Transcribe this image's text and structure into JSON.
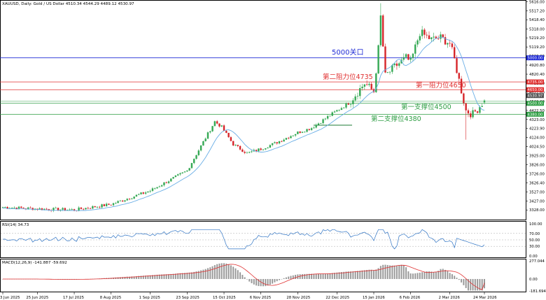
{
  "header": {
    "symbol_text": "XAUUSD, Daily:  Gold / US Dollar  4510.34 4544.29 4489.12 4530.97"
  },
  "colors": {
    "bull": "#33a853",
    "bear": "#d6252a",
    "ma": "#6aaee6",
    "line_5000": "#1f2bd6",
    "resistance": "#e03131",
    "support": "#2f9e44",
    "rsi": "#2e73c4",
    "macd_signal": "#e03131",
    "macd_hist": "#9a9a9a"
  },
  "annotations": {
    "level_5000": "5000关口",
    "resistance_1": "第一阻力位4650",
    "resistance_2": "第二阻力位4735",
    "support_1": "第一支撑位4500",
    "support_2": "第二支撑位4380"
  },
  "price_axis": {
    "ticks": [
      "5616.00",
      "5517.20",
      "5418.40",
      "5318.00",
      "5219.20",
      "5119.20",
      "5020.00",
      "4920.80",
      "4820.40",
      "4721.20",
      "4621.60",
      "4522.00",
      "4422.50",
      "4323.00",
      "4223.90",
      "4124.00",
      "4024.50",
      "3925.00",
      "3826.00",
      "3726.00",
      "3626.40",
      "3527.00",
      "3427.00",
      "3328.00"
    ],
    "tags": {
      "level_5000": "5000.00",
      "resistance_2": "4735.00",
      "resistance_1": "4650.00",
      "current": "4530.97",
      "support_1": "4500.00",
      "support_2": "4380.00"
    }
  },
  "rsi_panel": {
    "label": "RSI(14) 34.73",
    "ticks": [
      "100.00",
      "70.00",
      "50.00",
      "30.00",
      "0.00"
    ]
  },
  "macd_panel": {
    "label": "MACD(12,26,9) -141.887 -59.692",
    "ticks": [
      "277.044",
      "0.00",
      "-181.694"
    ]
  },
  "time_axis": {
    "labels": [
      "3 Jun 2025",
      "25 Jun 2025",
      "17 Jul 2025",
      "8 Aug 2025",
      "1 Sep 2025",
      "23 Sep 2025",
      "15 Oct 2025",
      "6 Nov 2025",
      "28 Nov 2025",
      "22 Dec 2025",
      "15 Jan 2026",
      "6 Feb 2026",
      "2 Mar 2026",
      "24 Mar 2026"
    ]
  },
  "chart_data": {
    "type": "candlestick",
    "instrument": "XAUUSD",
    "timeframe": "Daily",
    "last_bar": {
      "open": 4510.34,
      "high": 4544.29,
      "low": 4489.12,
      "close": 4530.97
    },
    "ylim": [
      3230,
      5620
    ],
    "price_path": [
      {
        "date": "3 Jun 2025",
        "close": 3360
      },
      {
        "date": "25 Jun 2025",
        "close": 3340
      },
      {
        "date": "17 Jul 2025",
        "close": 3330
      },
      {
        "date": "8 Aug 2025",
        "close": 3390
      },
      {
        "date": "1 Sep 2025",
        "close": 3540
      },
      {
        "date": "23 Sep 2025",
        "close": 3760
      },
      {
        "date": "15 Oct 2025",
        "close": 4200
      },
      {
        "date": "6 Nov 2025",
        "close": 4000
      },
      {
        "date": "28 Nov 2025",
        "close": 4180
      },
      {
        "date": "22 Dec 2025",
        "close": 4420
      },
      {
        "date": "15 Jan 2026",
        "close": 4630
      },
      {
        "date": "6 Feb 2026",
        "close": 4950
      },
      {
        "date": "2 Mar 2026",
        "close": 5160
      },
      {
        "date": "24 Mar 2026",
        "close": 4531
      }
    ],
    "horizontal_levels": [
      {
        "label": "5000关口",
        "value": 5000
      },
      {
        "label": "第二阻力位4735",
        "value": 4735
      },
      {
        "label": "第一阻力位4650",
        "value": 4650
      },
      {
        "label": "第一支撑位4500",
        "value": 4500
      },
      {
        "label": "第二支撑位4380",
        "value": 4380
      }
    ],
    "indicators": {
      "rsi": {
        "period": 14,
        "value": 34.73,
        "levels": [
          70,
          50,
          30
        ]
      },
      "macd": {
        "params": [
          12,
          26,
          9
        ],
        "macd": -141.887,
        "signal": -59.692,
        "ylim": [
          -181.694,
          277.044
        ]
      }
    }
  }
}
